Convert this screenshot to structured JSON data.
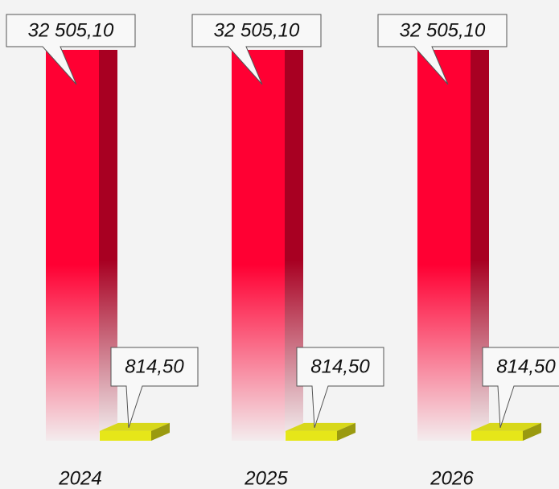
{
  "chart_data": {
    "type": "bar3d",
    "categories": [
      "2024",
      "2025",
      "2026"
    ],
    "series": [
      {
        "color": "#ff0033",
        "values": [
          32505.1,
          32505.1,
          32505.1
        ],
        "value_labels": [
          "32 505,10",
          "32 505,10",
          "32 505,10"
        ]
      },
      {
        "color": "#e6e619",
        "values": [
          814.5,
          814.5,
          814.5
        ],
        "value_labels": [
          "814,50",
          "814,50",
          "814,50"
        ]
      }
    ]
  }
}
